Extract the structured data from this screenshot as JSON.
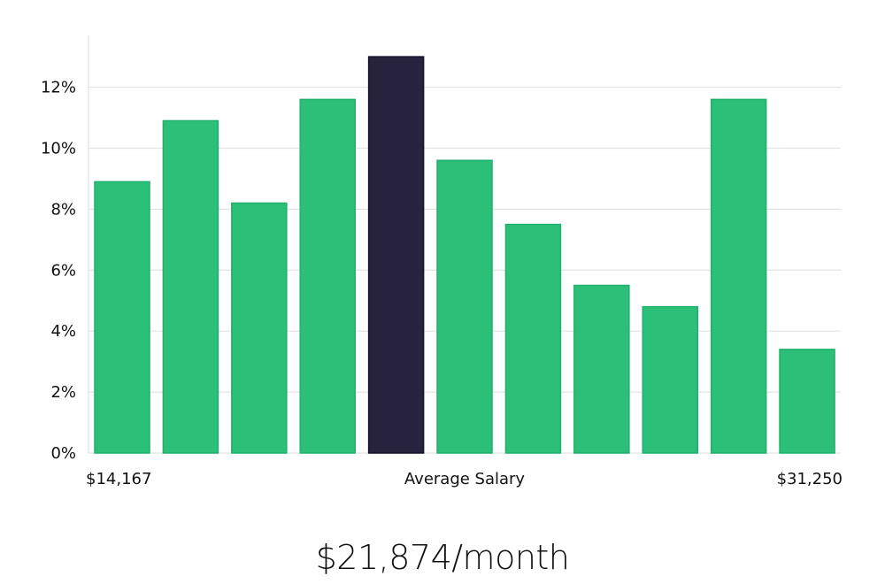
{
  "headline": "$21,874/month",
  "chart_data": {
    "type": "bar",
    "series": [
      {
        "values": [
          8.9,
          10.9,
          8.2,
          11.6,
          13.0,
          9.6,
          7.5,
          5.5,
          4.8,
          11.6,
          3.4
        ],
        "highlight_index": 4
      }
    ],
    "x_labels": {
      "left": "$14,167",
      "center": "Average Salary",
      "right": "$31,250"
    },
    "yticks": [
      "0%",
      "2%",
      "4%",
      "6%",
      "8%",
      "10%",
      "12%"
    ],
    "ytick_values": [
      0,
      2,
      4,
      6,
      8,
      10,
      12
    ],
    "ylim": [
      0,
      13.7
    ],
    "grid": true,
    "colors": {
      "bar": "#2bbf78",
      "bar_stroke": "#21b06c",
      "highlight": "#27233f",
      "highlight_stroke": "#15122a"
    }
  }
}
